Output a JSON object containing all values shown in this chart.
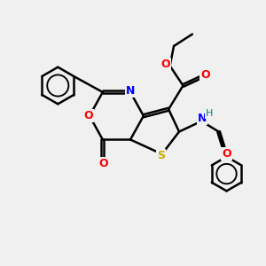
{
  "background_color": "#f0f0f0",
  "figsize": [
    3.0,
    3.0
  ],
  "dpi": 100,
  "atom_colors": {
    "N": "#0000ff",
    "O": "#ff0000",
    "S": "#ccaa00",
    "H": "#008080",
    "C": "#000000"
  },
  "bond_color": "#000000",
  "bond_lw": 1.8
}
